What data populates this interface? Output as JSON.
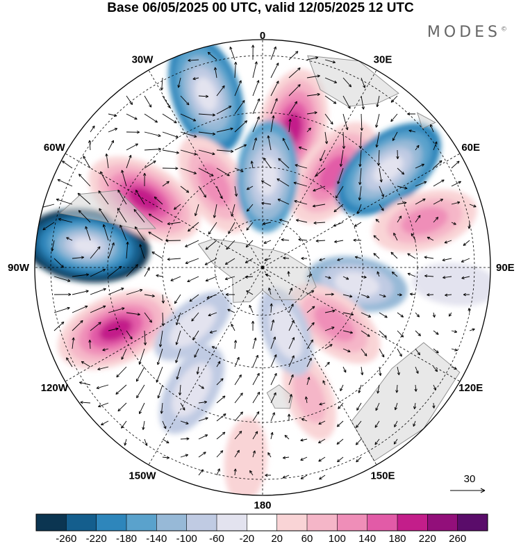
{
  "header": {
    "title": "Base 06/05/2025 00 UTC, valid 12/05/2025 12 UTC",
    "brand": "MODES",
    "brand_mark": "©"
  },
  "map": {
    "projection": "south-polar-stereographic",
    "longitude_labels": [
      {
        "text": "0",
        "lon": 0
      },
      {
        "text": "30E",
        "lon": 30
      },
      {
        "text": "60E",
        "lon": 60
      },
      {
        "text": "90E",
        "lon": 90
      },
      {
        "text": "120E",
        "lon": 120
      },
      {
        "text": "150E",
        "lon": 150
      },
      {
        "text": "180",
        "lon": 180
      },
      {
        "text": "150W",
        "lon": -150
      },
      {
        "text": "120W",
        "lon": -120
      },
      {
        "text": "90W",
        "lon": -90
      },
      {
        "text": "60W",
        "lon": -60
      },
      {
        "text": "30W",
        "lon": -30
      }
    ],
    "vector_reference": {
      "value": "30"
    },
    "colors": {
      "land": "#d6d6d6",
      "coast": "#8a8a8a",
      "grid": "#000000"
    }
  },
  "anomaly_centers": [
    {
      "lon": -83,
      "r": 0.78,
      "value": -260
    },
    {
      "lon": -113,
      "r": 0.7,
      "value": 180
    },
    {
      "lon": -60,
      "r": 0.6,
      "value": 180
    },
    {
      "lon": -18,
      "r": 0.8,
      "value": -180
    },
    {
      "lon": 12,
      "r": 0.62,
      "value": 180
    },
    {
      "lon": 37,
      "r": 0.52,
      "value": 160
    },
    {
      "lon": -30,
      "r": 0.42,
      "value": 120
    },
    {
      "lon": 3,
      "r": 0.4,
      "value": -140
    },
    {
      "lon": 52,
      "r": 0.7,
      "value": -180
    },
    {
      "lon": 74,
      "r": 0.74,
      "value": 120
    },
    {
      "lon": 100,
      "r": 0.42,
      "value": -100
    },
    {
      "lon": 128,
      "r": 0.4,
      "value": 120
    },
    {
      "lon": 160,
      "r": 0.6,
      "value": 60
    },
    {
      "lon": -150,
      "r": 0.62,
      "value": -80
    },
    {
      "lon": -130,
      "r": 0.4,
      "value": -60
    },
    {
      "lon": 160,
      "r": 0.3,
      "value": -60
    },
    {
      "lon": 95,
      "r": 0.85,
      "value": -40
    },
    {
      "lon": -175,
      "r": 0.85,
      "value": 40
    }
  ],
  "colorbar": {
    "levels": [
      -260,
      -220,
      -180,
      -140,
      -100,
      -60,
      -20,
      20,
      60,
      100,
      140,
      180,
      220,
      260
    ],
    "labels": [
      "-260",
      "-220",
      "-180",
      "-140",
      "-100",
      "-60",
      "-20",
      "20",
      "60",
      "100",
      "140",
      "180",
      "220",
      "260"
    ],
    "colors": [
      "#0b3551",
      "#145e8d",
      "#2e86bb",
      "#5aa2cc",
      "#97b9d7",
      "#c0cbe3",
      "#e3e3ef",
      "#ffffff",
      "#f9d4d6",
      "#f5b6c8",
      "#ef8eb8",
      "#e25ba7",
      "#c31e8a",
      "#920f7a",
      "#5a0c6a"
    ]
  }
}
